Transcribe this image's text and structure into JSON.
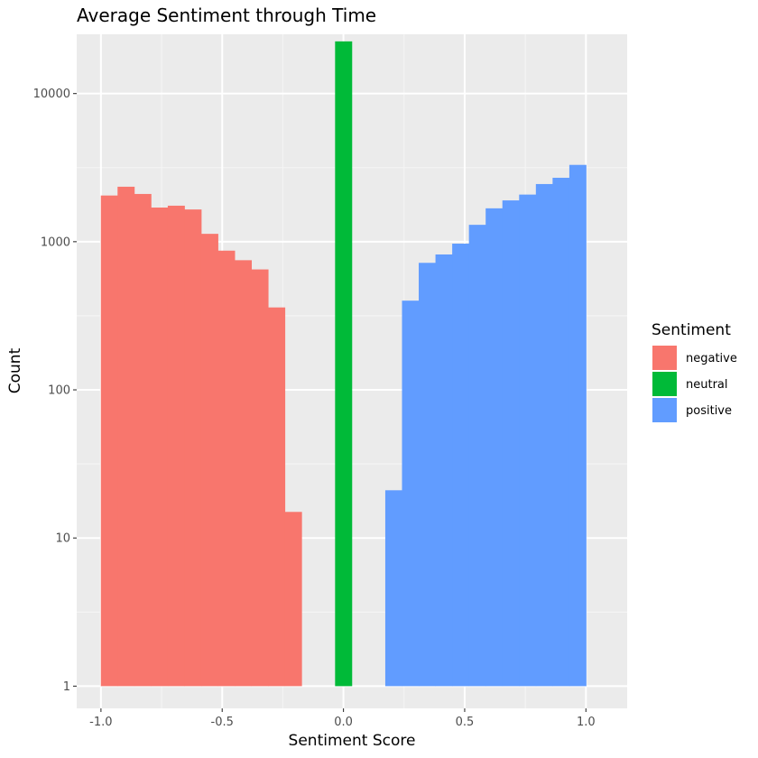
{
  "chart_data": {
    "type": "bar",
    "title": "Average Sentiment through Time",
    "xlabel": "Sentiment Score",
    "ylabel": "Count",
    "xlim": [
      -1.1,
      1.17
    ],
    "ylim_log10": [
      -0.15,
      4.4
    ],
    "y_scale": "log10",
    "grid": true,
    "x_ticks": [
      {
        "value": -1.0,
        "label": "-1.0"
      },
      {
        "value": -0.5,
        "label": "-0.5"
      },
      {
        "value": 0.0,
        "label": "0.0"
      },
      {
        "value": 0.5,
        "label": "0.5"
      },
      {
        "value": 1.0,
        "label": "1.0"
      }
    ],
    "y_ticks": [
      {
        "value": 1,
        "label": "1"
      },
      {
        "value": 10,
        "label": "10"
      },
      {
        "value": 100,
        "label": "100"
      },
      {
        "value": 1000,
        "label": "1000"
      },
      {
        "value": 10000,
        "label": "10000"
      }
    ],
    "bin_width": 0.069,
    "series": [
      {
        "name": "negative",
        "color": "#F8766D",
        "bars": [
          {
            "x": -0.966,
            "y": 2050
          },
          {
            "x": -0.897,
            "y": 2350
          },
          {
            "x": -0.828,
            "y": 2100
          },
          {
            "x": -0.759,
            "y": 1700
          },
          {
            "x": -0.69,
            "y": 1750
          },
          {
            "x": -0.621,
            "y": 1650
          },
          {
            "x": -0.552,
            "y": 1130
          },
          {
            "x": -0.483,
            "y": 870
          },
          {
            "x": -0.414,
            "y": 750
          },
          {
            "x": -0.345,
            "y": 650
          },
          {
            "x": -0.276,
            "y": 360
          },
          {
            "x": -0.207,
            "y": 15
          }
        ]
      },
      {
        "name": "neutral",
        "color": "#00BA38",
        "bars": [
          {
            "x": 0.0,
            "y": 22500
          }
        ]
      },
      {
        "name": "positive",
        "color": "#619CFF",
        "bars": [
          {
            "x": 0.207,
            "y": 21
          },
          {
            "x": 0.276,
            "y": 400
          },
          {
            "x": 0.345,
            "y": 720
          },
          {
            "x": 0.414,
            "y": 820
          },
          {
            "x": 0.483,
            "y": 970
          },
          {
            "x": 0.552,
            "y": 1300
          },
          {
            "x": 0.621,
            "y": 1680
          },
          {
            "x": 0.69,
            "y": 1900
          },
          {
            "x": 0.759,
            "y": 2080
          },
          {
            "x": 0.828,
            "y": 2450
          },
          {
            "x": 0.897,
            "y": 2700
          },
          {
            "x": 0.966,
            "y": 3300
          }
        ]
      }
    ],
    "legend": {
      "title": "Sentiment",
      "position": "right",
      "items": [
        {
          "label": "negative",
          "color": "#F8766D"
        },
        {
          "label": "neutral",
          "color": "#00BA38"
        },
        {
          "label": "positive",
          "color": "#619CFF"
        }
      ]
    },
    "colors": {
      "panel_background": "#EBEBEB",
      "grid_major": "#FFFFFF",
      "grid_minor": "#F5F5F5",
      "tick_text": "#4D4D4D",
      "tick_mark": "#333333"
    }
  }
}
